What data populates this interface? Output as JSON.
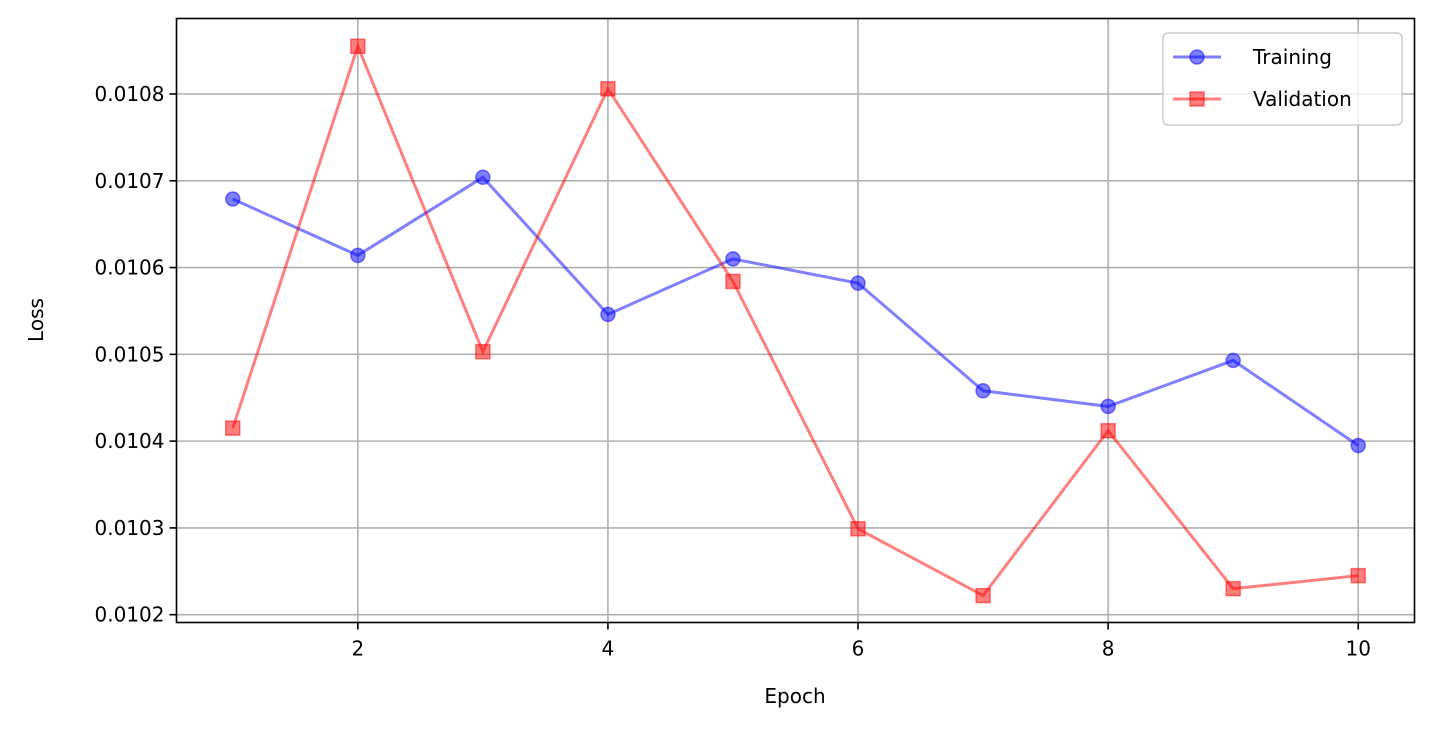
{
  "chart_data": {
    "type": "line",
    "title": "",
    "xlabel": "Epoch",
    "ylabel": "Loss",
    "x": [
      1,
      2,
      3,
      4,
      5,
      6,
      7,
      8,
      9,
      10
    ],
    "xlim": [
      0.55,
      10.45
    ],
    "ylim": [
      0.010191,
      0.010887
    ],
    "xticks": [
      2,
      4,
      6,
      8,
      10
    ],
    "xtick_labels": [
      "2",
      "4",
      "6",
      "8",
      "10"
    ],
    "yticks": [
      0.0102,
      0.0103,
      0.0104,
      0.0105,
      0.0106,
      0.0107,
      0.0108
    ],
    "ytick_labels": [
      "0.0102",
      "0.0103",
      "0.0104",
      "0.0105",
      "0.0106",
      "0.0107",
      "0.0108"
    ],
    "grid": true,
    "legend_position": "top-right",
    "series": [
      {
        "name": "Training",
        "color": "#0000ff",
        "marker": "circle",
        "values": [
          0.010679,
          0.010614,
          0.010704,
          0.010546,
          0.01061,
          0.010582,
          0.010458,
          0.01044,
          0.010493,
          0.010395
        ]
      },
      {
        "name": "Validation",
        "color": "#ff0000",
        "marker": "square",
        "values": [
          0.010415,
          0.010855,
          0.010503,
          0.010806,
          0.010584,
          0.010299,
          0.010222,
          0.010412,
          0.01023,
          0.010245
        ]
      }
    ]
  }
}
